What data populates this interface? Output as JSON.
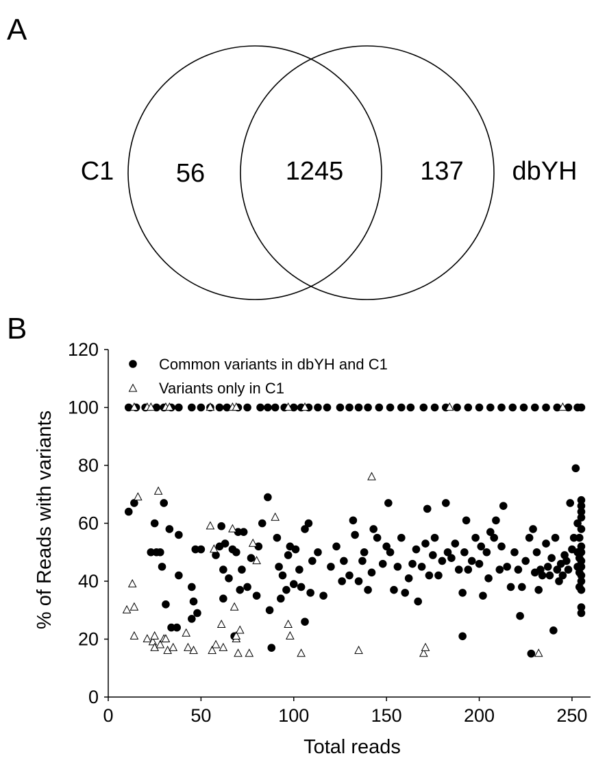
{
  "panel_a": {
    "label": "A",
    "venn": {
      "left_set": "C1",
      "right_set": "dbYH",
      "left_only": "56",
      "intersection": "1245",
      "right_only": "137"
    }
  },
  "panel_b": {
    "label": "B"
  },
  "chart_data": [
    {
      "type": "venn",
      "sets": [
        "C1",
        "dbYH"
      ],
      "regions": [
        {
          "sets": [
            "C1"
          ],
          "value": 56
        },
        {
          "sets": [
            "C1",
            "dbYH"
          ],
          "value": 1245
        },
        {
          "sets": [
            "dbYH"
          ],
          "value": 137
        }
      ]
    },
    {
      "type": "scatter",
      "title": "",
      "xlabel": "Total reads",
      "ylabel": "% of Reads with variants",
      "xlim": [
        0,
        260
      ],
      "ylim": [
        0,
        120
      ],
      "xticks": [
        "0",
        "50",
        "100",
        "150",
        "200",
        "250"
      ],
      "yticks": [
        "0",
        "20",
        "40",
        "60",
        "80",
        "100",
        "120"
      ],
      "legend_position": "top-left",
      "grid": false,
      "series": [
        {
          "name": "Common variants in dbYH and C1",
          "marker": "filled-circle",
          "color": "#000000",
          "points": [
            [
              11,
              100
            ],
            [
              15,
              100
            ],
            [
              20,
              100
            ],
            [
              26,
              100
            ],
            [
              30,
              100
            ],
            [
              34,
              100
            ],
            [
              38,
              100
            ],
            [
              45,
              100
            ],
            [
              50,
              100
            ],
            [
              55,
              100
            ],
            [
              60,
              100
            ],
            [
              64,
              100
            ],
            [
              70,
              100
            ],
            [
              75,
              100
            ],
            [
              82,
              100
            ],
            [
              86,
              100
            ],
            [
              90,
              100
            ],
            [
              95,
              100
            ],
            [
              100,
              100
            ],
            [
              104,
              100
            ],
            [
              108,
              100
            ],
            [
              113,
              100
            ],
            [
              118,
              100
            ],
            [
              125,
              100
            ],
            [
              130,
              100
            ],
            [
              135,
              100
            ],
            [
              140,
              100
            ],
            [
              146,
              100
            ],
            [
              152,
              100
            ],
            [
              158,
              100
            ],
            [
              163,
              100
            ],
            [
              170,
              100
            ],
            [
              176,
              100
            ],
            [
              182,
              100
            ],
            [
              188,
              100
            ],
            [
              194,
              100
            ],
            [
              200,
              100
            ],
            [
              206,
              100
            ],
            [
              212,
              100
            ],
            [
              218,
              100
            ],
            [
              224,
              100
            ],
            [
              230,
              100
            ],
            [
              236,
              100
            ],
            [
              242,
              100
            ],
            [
              248,
              100
            ],
            [
              253,
              100
            ],
            [
              255,
              100
            ],
            [
              11,
              64
            ],
            [
              14,
              67
            ],
            [
              23,
              50
            ],
            [
              25,
              60
            ],
            [
              26,
              50
            ],
            [
              28,
              50
            ],
            [
              29,
              45
            ],
            [
              30,
              67
            ],
            [
              31,
              32
            ],
            [
              33,
              58
            ],
            [
              34,
              24
            ],
            [
              37,
              24
            ],
            [
              38,
              56
            ],
            [
              38,
              42
            ],
            [
              45,
              27
            ],
            [
              45,
              38
            ],
            [
              46,
              33
            ],
            [
              47,
              51
            ],
            [
              48,
              29
            ],
            [
              50,
              51
            ],
            [
              58,
              49
            ],
            [
              60,
              52
            ],
            [
              61,
              59
            ],
            [
              62,
              34
            ],
            [
              62,
              44
            ],
            [
              63,
              53
            ],
            [
              65,
              41
            ],
            [
              67,
              51
            ],
            [
              68,
              21
            ],
            [
              69,
              50
            ],
            [
              70,
              57
            ],
            [
              71,
              37
            ],
            [
              72,
              44
            ],
            [
              73,
              57
            ],
            [
              75,
              38
            ],
            [
              77,
              48
            ],
            [
              80,
              35
            ],
            [
              81,
              52
            ],
            [
              83,
              60
            ],
            [
              86,
              69
            ],
            [
              87,
              30
            ],
            [
              88,
              17
            ],
            [
              91,
              55
            ],
            [
              92,
              45
            ],
            [
              93,
              34
            ],
            [
              94,
              42
            ],
            [
              96,
              37
            ],
            [
              97,
              49
            ],
            [
              98,
              52
            ],
            [
              100,
              39
            ],
            [
              101,
              51
            ],
            [
              103,
              44
            ],
            [
              104,
              38
            ],
            [
              106,
              58
            ],
            [
              106,
              26
            ],
            [
              108,
              60
            ],
            [
              109,
              36
            ],
            [
              110,
              47
            ],
            [
              113,
              50
            ],
            [
              116,
              35
            ],
            [
              120,
              45
            ],
            [
              123,
              52
            ],
            [
              126,
              40
            ],
            [
              127,
              47
            ],
            [
              130,
              42
            ],
            [
              132,
              61
            ],
            [
              133,
              56
            ],
            [
              135,
              40
            ],
            [
              137,
              47
            ],
            [
              138,
              50
            ],
            [
              140,
              37
            ],
            [
              142,
              43
            ],
            [
              143,
              58
            ],
            [
              145,
              55
            ],
            [
              148,
              46
            ],
            [
              150,
              52
            ],
            [
              151,
              67
            ],
            [
              152,
              50
            ],
            [
              154,
              37
            ],
            [
              156,
              45
            ],
            [
              158,
              55
            ],
            [
              160,
              36
            ],
            [
              162,
              41
            ],
            [
              164,
              46
            ],
            [
              166,
              51
            ],
            [
              167,
              33
            ],
            [
              169,
              45
            ],
            [
              171,
              53
            ],
            [
              172,
              65
            ],
            [
              173,
              42
            ],
            [
              175,
              49
            ],
            [
              176,
              55
            ],
            [
              178,
              42
            ],
            [
              180,
              47
            ],
            [
              182,
              67
            ],
            [
              183,
              50
            ],
            [
              185,
              48
            ],
            [
              187,
              53
            ],
            [
              189,
              44
            ],
            [
              191,
              21
            ],
            [
              191,
              36
            ],
            [
              192,
              50
            ],
            [
              193,
              61
            ],
            [
              194,
              44
            ],
            [
              196,
              47
            ],
            [
              198,
              55
            ],
            [
              200,
              46
            ],
            [
              201,
              52
            ],
            [
              202,
              35
            ],
            [
              204,
              50
            ],
            [
              205,
              41
            ],
            [
              206,
              57
            ],
            [
              208,
              55
            ],
            [
              209,
              61
            ],
            [
              211,
              44
            ],
            [
              212,
              52
            ],
            [
              213,
              66
            ],
            [
              215,
              45
            ],
            [
              217,
              38
            ],
            [
              219,
              50
            ],
            [
              221,
              44
            ],
            [
              222,
              28
            ],
            [
              223,
              38
            ],
            [
              225,
              47
            ],
            [
              227,
              55
            ],
            [
              228,
              15
            ],
            [
              229,
              58
            ],
            [
              230,
              43
            ],
            [
              231,
              50
            ],
            [
              232,
              37
            ],
            [
              233,
              44
            ],
            [
              234,
              42
            ],
            [
              236,
              53
            ],
            [
              237,
              45
            ],
            [
              238,
              42
            ],
            [
              239,
              48
            ],
            [
              240,
              23
            ],
            [
              241,
              55
            ],
            [
              242,
              44
            ],
            [
              243,
              40
            ],
            [
              244,
              46
            ],
            [
              245,
              42
            ],
            [
              246,
              49
            ],
            [
              247,
              47
            ],
            [
              248,
              44
            ],
            [
              249,
              67
            ],
            [
              250,
              51
            ],
            [
              251,
              55
            ],
            [
              252,
              79
            ],
            [
              253,
              60
            ],
            [
              253,
              45
            ],
            [
              253,
              50
            ],
            [
              254,
              43
            ],
            [
              254,
              38
            ],
            [
              254,
              48
            ],
            [
              254,
              55
            ],
            [
              255,
              66
            ],
            [
              255,
              62
            ],
            [
              255,
              52
            ],
            [
              255,
              47
            ],
            [
              255,
              42
            ],
            [
              255,
              37
            ],
            [
              255,
              31
            ],
            [
              255,
              29
            ],
            [
              255,
              58
            ],
            [
              255,
              64
            ],
            [
              255,
              68
            ],
            [
              255,
              40
            ],
            [
              255,
              45
            ],
            [
              255,
              50
            ]
          ]
        },
        {
          "name": "Variants only in C1",
          "marker": "open-triangle",
          "color": "#000000",
          "points": [
            [
              14,
              100
            ],
            [
              21,
              100
            ],
            [
              23,
              100
            ],
            [
              31,
              100
            ],
            [
              33,
              100
            ],
            [
              55,
              100
            ],
            [
              67,
              100
            ],
            [
              69,
              100
            ],
            [
              97,
              100
            ],
            [
              106,
              100
            ],
            [
              184,
              100
            ],
            [
              245,
              100
            ],
            [
              10,
              30
            ],
            [
              13,
              39
            ],
            [
              14,
              31
            ],
            [
              14,
              21
            ],
            [
              16,
              69
            ],
            [
              21,
              20
            ],
            [
              24,
              19
            ],
            [
              25,
              21
            ],
            [
              25,
              17
            ],
            [
              27,
              71
            ],
            [
              28,
              18
            ],
            [
              30,
              20
            ],
            [
              31,
              20
            ],
            [
              32,
              16
            ],
            [
              35,
              17
            ],
            [
              42,
              22
            ],
            [
              43,
              17
            ],
            [
              46,
              16
            ],
            [
              55,
              59
            ],
            [
              56,
              16
            ],
            [
              57,
              51
            ],
            [
              58,
              18
            ],
            [
              61,
              25
            ],
            [
              62,
              17
            ],
            [
              67,
              58
            ],
            [
              68,
              31
            ],
            [
              69,
              20
            ],
            [
              69,
              21
            ],
            [
              70,
              15
            ],
            [
              71,
              23
            ],
            [
              76,
              15
            ],
            [
              78,
              53
            ],
            [
              80,
              47
            ],
            [
              90,
              62
            ],
            [
              97,
              25
            ],
            [
              98,
              21
            ],
            [
              104,
              15
            ],
            [
              135,
              16
            ],
            [
              142,
              76
            ],
            [
              170,
              15
            ],
            [
              171,
              17
            ],
            [
              232,
              15
            ]
          ]
        }
      ]
    }
  ]
}
